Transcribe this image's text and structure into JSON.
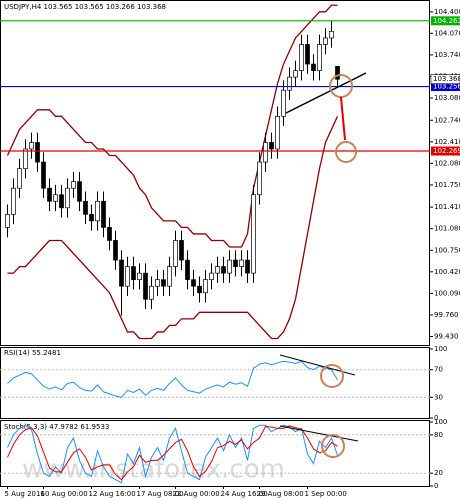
{
  "watermark": "www.instaforex.com",
  "chart_data": [
    {
      "type": "candlestick",
      "title": "USDJPY,H4 103.565 103.565 103.266 103.368",
      "categories": [
        "5 Aug 2016",
        null,
        null,
        null,
        null,
        null,
        "10 Aug 00:00",
        null,
        null,
        null,
        null,
        null,
        null,
        null,
        "12 Aug 16:00",
        null,
        null,
        null,
        null,
        null,
        null,
        null,
        "17 Aug 08:00",
        null,
        null,
        null,
        null,
        null,
        "22 Aug 00:00",
        null,
        null,
        null,
        null,
        null,
        null,
        null,
        "24 Aug 16:00",
        null,
        null,
        null,
        null,
        null,
        "29 Aug 08:00",
        null,
        null,
        null,
        null,
        null,
        null,
        null,
        "1 Sep 00:00",
        null,
        null,
        null,
        null,
        null
      ],
      "open": [
        101.1,
        101.3,
        101.7,
        102.0,
        102.3,
        102.4,
        102.1,
        101.7,
        101.5,
        101.6,
        101.4,
        101.7,
        101.8,
        101.5,
        101.3,
        101.2,
        101.5,
        101.1,
        100.9,
        100.6,
        100.2,
        100.5,
        100.3,
        100.4,
        100.0,
        100.2,
        100.3,
        100.2,
        100.5,
        100.9,
        100.6,
        100.3,
        100.2,
        100.1,
        100.3,
        100.4,
        100.5,
        100.4,
        100.6,
        100.5,
        100.6,
        100.4,
        101.6,
        102.1,
        102.4,
        102.3,
        102.8,
        103.2,
        103.4,
        103.5,
        103.9,
        103.6,
        103.5,
        103.9,
        104.0,
        103.565
      ],
      "high": [
        101.45,
        101.85,
        102.15,
        102.45,
        102.55,
        102.55,
        102.25,
        101.85,
        101.75,
        101.75,
        101.85,
        101.95,
        101.95,
        101.65,
        101.45,
        101.65,
        101.65,
        101.25,
        101.05,
        100.75,
        100.65,
        100.65,
        100.55,
        100.55,
        100.35,
        100.45,
        100.45,
        100.65,
        101.05,
        101.05,
        100.75,
        100.45,
        100.35,
        100.45,
        100.55,
        100.65,
        100.65,
        100.75,
        100.75,
        100.75,
        100.75,
        101.75,
        102.25,
        102.55,
        102.55,
        102.95,
        103.35,
        103.55,
        103.65,
        104.05,
        104.05,
        103.75,
        104.05,
        104.15,
        104.26,
        103.565
      ],
      "low": [
        100.95,
        101.15,
        101.55,
        101.85,
        102.15,
        101.95,
        101.55,
        101.35,
        101.35,
        101.25,
        101.25,
        101.55,
        101.35,
        101.15,
        101.05,
        101.05,
        100.95,
        100.75,
        100.45,
        99.75,
        100.05,
        100.15,
        100.15,
        99.85,
        99.85,
        100.05,
        100.05,
        100.05,
        100.35,
        100.45,
        100.15,
        100.05,
        99.95,
        99.95,
        100.15,
        100.25,
        100.25,
        100.25,
        100.35,
        100.35,
        100.25,
        100.25,
        101.45,
        101.95,
        102.15,
        102.15,
        102.65,
        103.05,
        103.25,
        103.35,
        103.45,
        103.35,
        103.35,
        103.75,
        103.85,
        103.266
      ],
      "close": [
        101.3,
        101.7,
        102.0,
        102.3,
        102.4,
        102.1,
        101.7,
        101.5,
        101.6,
        101.4,
        101.7,
        101.8,
        101.5,
        101.3,
        101.2,
        101.5,
        101.1,
        100.9,
        100.6,
        100.2,
        100.5,
        100.3,
        100.4,
        100.0,
        100.2,
        100.3,
        100.2,
        100.5,
        100.9,
        100.6,
        100.3,
        100.2,
        100.1,
        100.3,
        100.4,
        100.5,
        100.4,
        100.6,
        100.5,
        100.6,
        100.4,
        101.6,
        102.1,
        102.4,
        102.3,
        102.8,
        103.2,
        103.4,
        103.5,
        103.9,
        103.6,
        103.5,
        103.9,
        104.0,
        104.1,
        103.368
      ],
      "up_color": "#ffffff",
      "down_color": "#000000",
      "bands": {
        "color": "#8b0000",
        "upper": [
          102.2,
          102.4,
          102.6,
          102.7,
          102.8,
          102.9,
          102.9,
          102.9,
          102.8,
          102.8,
          102.7,
          102.6,
          102.5,
          102.4,
          102.4,
          102.3,
          102.3,
          102.2,
          102.2,
          102.1,
          102.0,
          101.9,
          101.7,
          101.6,
          101.4,
          101.3,
          101.2,
          101.2,
          101.2,
          101.1,
          101.1,
          101.0,
          101.0,
          101.0,
          100.9,
          100.9,
          100.9,
          100.8,
          100.8,
          100.8,
          101.0,
          101.7,
          102.1,
          102.5,
          102.9,
          103.3,
          103.6,
          103.8,
          104.0,
          104.1,
          104.2,
          104.3,
          104.4,
          104.4,
          104.5,
          104.5
        ],
        "lower": [
          100.4,
          100.4,
          100.5,
          100.5,
          100.6,
          100.7,
          100.8,
          100.9,
          100.9,
          100.9,
          100.8,
          100.7,
          100.6,
          100.5,
          100.4,
          100.3,
          100.2,
          100.1,
          99.9,
          99.7,
          99.5,
          99.5,
          99.4,
          99.4,
          99.4,
          99.5,
          99.5,
          99.6,
          99.6,
          99.7,
          99.7,
          99.7,
          99.8,
          99.8,
          99.8,
          99.8,
          99.8,
          99.8,
          99.8,
          99.8,
          99.8,
          99.7,
          99.6,
          99.5,
          99.4,
          99.4,
          99.5,
          99.7,
          100.0,
          100.5,
          101.0,
          101.5,
          102.0,
          102.4,
          102.6,
          102.8
        ]
      },
      "levels": [
        {
          "value": 104.262,
          "color": "#00b000"
        },
        {
          "value": 103.256,
          "color": "#0000c8"
        },
        {
          "value": 102.269,
          "color": "#e00000"
        }
      ],
      "last_price": 103.368,
      "ylim": [
        99.3,
        104.55
      ],
      "yticks": [
        {
          "value": 104.4,
          "label": "104.400"
        },
        {
          "value": 104.07,
          "label": "104.070"
        },
        {
          "value": 103.74,
          "label": "103.740"
        },
        {
          "value": 103.41,
          "label": "103.410"
        },
        {
          "value": 103.08,
          "label": "103.080"
        },
        {
          "value": 102.74,
          "label": "102.740"
        },
        {
          "value": 102.41,
          "label": "102.410"
        },
        {
          "value": 102.08,
          "label": "102.080"
        },
        {
          "value": 101.75,
          "label": "101.750"
        },
        {
          "value": 101.41,
          "label": "101.410"
        },
        {
          "value": 101.08,
          "label": "101.080"
        },
        {
          "value": 100.75,
          "label": "100.750"
        },
        {
          "value": 100.42,
          "label": "100.420"
        },
        {
          "value": 100.09,
          "label": "100.090"
        },
        {
          "value": 99.76,
          "label": "99.760"
        },
        {
          "value": 99.43,
          "label": "99.430"
        }
      ]
    },
    {
      "type": "line",
      "title": "RSI(14) 55.2481",
      "ylim": [
        0,
        100
      ],
      "yticks": [
        100,
        70,
        30,
        0
      ],
      "series": [
        {
          "color": "#1e90ff",
          "values": [
            50,
            58,
            62,
            66,
            64,
            55,
            46,
            42,
            45,
            41,
            50,
            52,
            44,
            40,
            39,
            48,
            38,
            35,
            32,
            30,
            40,
            37,
            42,
            33,
            40,
            43,
            40,
            50,
            58,
            48,
            40,
            38,
            36,
            42,
            45,
            48,
            45,
            52,
            49,
            51,
            46,
            72,
            78,
            80,
            77,
            80,
            82,
            81,
            79,
            82,
            73,
            70,
            75,
            72,
            70,
            55.2481
          ]
        }
      ]
    },
    {
      "type": "line",
      "title": "Stoch(5,3,3) 47.9782 61.9533",
      "ylim": [
        0,
        100
      ],
      "yticks": [
        100,
        80,
        20,
        0
      ],
      "series": [
        {
          "color": "#1e90ff",
          "values": [
            60,
            80,
            90,
            95,
            88,
            50,
            20,
            15,
            30,
            20,
            60,
            75,
            40,
            20,
            15,
            55,
            30,
            15,
            10,
            5,
            50,
            35,
            60,
            15,
            45,
            60,
            40,
            75,
            90,
            55,
            20,
            15,
            10,
            45,
            60,
            75,
            55,
            80,
            60,
            75,
            40,
            90,
            95,
            95,
            85,
            90,
            95,
            92,
            85,
            90,
            50,
            35,
            70,
            60,
            75,
            47.9782
          ]
        },
        {
          "color": "#e00000",
          "values": [
            45,
            65,
            80,
            88,
            91,
            78,
            53,
            28,
            22,
            22,
            37,
            52,
            58,
            45,
            25,
            30,
            33,
            33,
            18,
            10,
            22,
            30,
            48,
            37,
            40,
            40,
            48,
            58,
            68,
            73,
            55,
            30,
            15,
            23,
            38,
            60,
            63,
            70,
            65,
            72,
            58,
            68,
            75,
            93,
            92,
            90,
            90,
            94,
            91,
            89,
            75,
            58,
            52,
            55,
            68,
            61.9533
          ]
        }
      ]
    }
  ]
}
